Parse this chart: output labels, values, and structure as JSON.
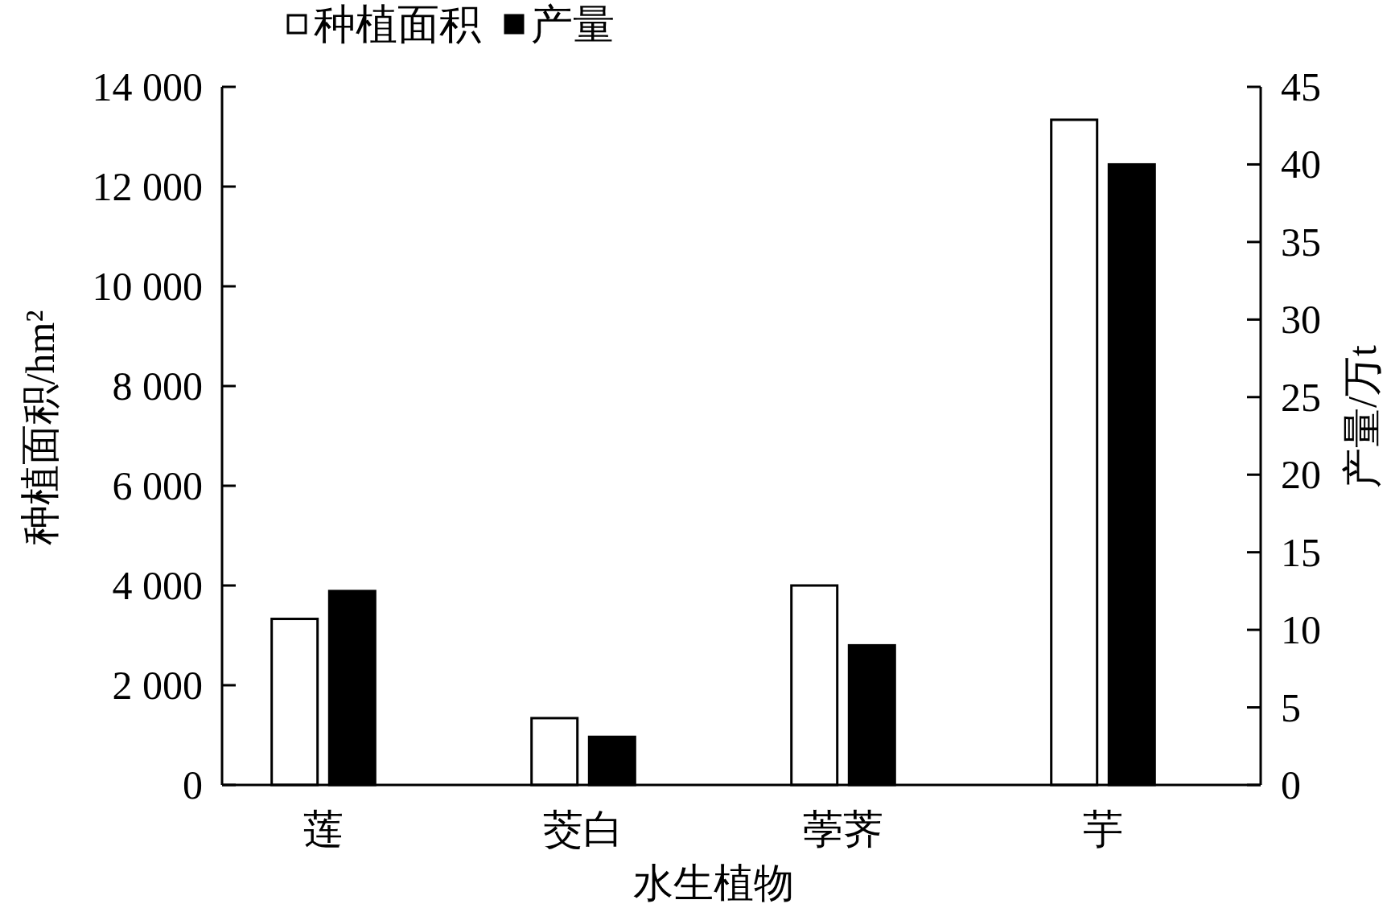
{
  "chart_data": {
    "type": "bar",
    "categories": [
      "莲",
      "茭白",
      "荸荠",
      "芋"
    ],
    "xlabel": "水生植物",
    "ylabel": "种植面积/hm²",
    "y2label": "产量/万t",
    "series": [
      {
        "name": "种植面积",
        "color": "#ffffff",
        "values": [
          3330,
          1340,
          4000,
          13340
        ]
      },
      {
        "name": "产量",
        "color": "#000000",
        "values": [
          12.5,
          3.1,
          9.0,
          40.0
        ],
        "axis": "y2"
      }
    ],
    "ylim": [
      0,
      14000
    ],
    "yticks": [
      0,
      {
        "value": 2000,
        "label": "2 000"
      },
      {
        "value": 4000,
        "label": "4 000"
      },
      {
        "value": 6000,
        "label": "6 000"
      },
      {
        "value": 8000,
        "label": "8 000"
      },
      {
        "value": 10000,
        "label": "10 000"
      },
      {
        "value": 12000,
        "label": "12 000"
      },
      {
        "value": 14000,
        "label": "14 000"
      }
    ],
    "y2lim": [
      0,
      45
    ],
    "y2ticks": [
      0,
      5,
      10,
      15,
      20,
      25,
      30,
      35,
      40,
      45
    ],
    "legend": "top"
  }
}
